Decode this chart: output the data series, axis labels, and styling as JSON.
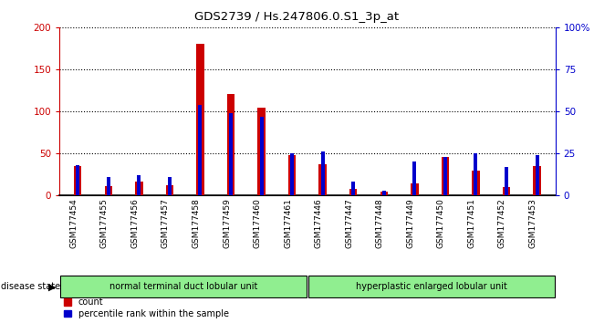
{
  "title": "GDS2739 / Hs.247806.0.S1_3p_at",
  "samples": [
    "GSM177454",
    "GSM177455",
    "GSM177456",
    "GSM177457",
    "GSM177458",
    "GSM177459",
    "GSM177460",
    "GSM177461",
    "GSM177446",
    "GSM177447",
    "GSM177448",
    "GSM177449",
    "GSM177450",
    "GSM177451",
    "GSM177452",
    "GSM177453"
  ],
  "counts": [
    35,
    11,
    17,
    12,
    180,
    121,
    105,
    48,
    37,
    8,
    5,
    14,
    46,
    29,
    10,
    35
  ],
  "percentiles": [
    18,
    11,
    12,
    11,
    54,
    49,
    47,
    25,
    26,
    8,
    3,
    20,
    23,
    25,
    17,
    24
  ],
  "group1_label": "normal terminal duct lobular unit",
  "group2_label": "hyperplastic enlarged lobular unit",
  "group1_count": 8,
  "group2_count": 8,
  "bar_color_red": "#cc0000",
  "bar_color_blue": "#0000cc",
  "ylim_left": [
    0,
    200
  ],
  "ylim_right": [
    0,
    100
  ],
  "yticks_left": [
    0,
    50,
    100,
    150,
    200
  ],
  "yticks_right": [
    0,
    25,
    50,
    75,
    100
  ],
  "ytick_labels_right": [
    "0",
    "25",
    "50",
    "75",
    "100%"
  ],
  "bg_color": "#ffffff",
  "group_bg": "#90ee90",
  "tick_area_bg": "#c8c8c8",
  "disease_state_label": "disease state",
  "legend_count": "count",
  "legend_pct": "percentile rank within the sample"
}
